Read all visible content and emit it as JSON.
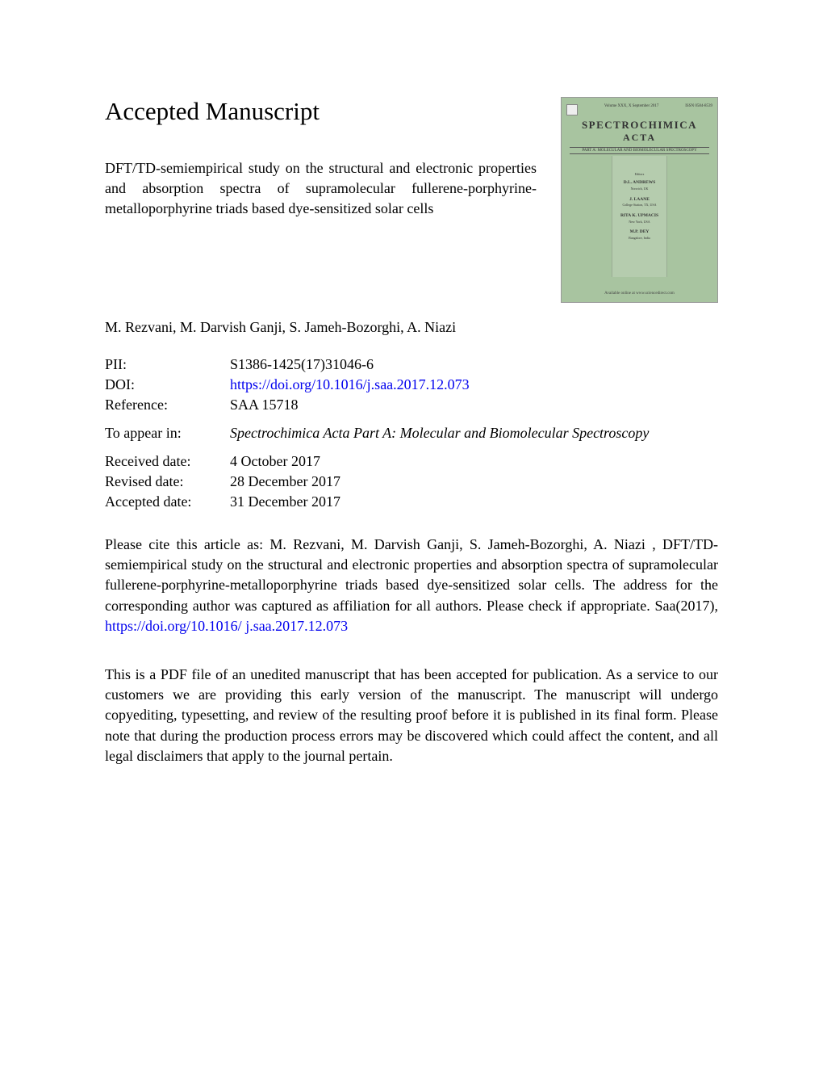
{
  "heading": "Accepted Manuscript",
  "article_title": "DFT/TD-semiempirical study on the structural and electronic properties and absorption spectra of supramolecular fullerene-porphyrine-metalloporphyrine triads based dye-sensitized solar cells",
  "authors": "M. Rezvani, M. Darvish Ganji, S. Jameh-Bozorghi, A. Niazi",
  "cover": {
    "volume_info": "Volume XXX,  X September  2017",
    "issn": "ISSN 0584-8539",
    "journal_title": "SPECTROCHIMICA",
    "journal_subtitle": "ACTA",
    "part": "PART A: MOLECULAR AND BIOMOLECULAR SPECTROSCOPY",
    "editors_label": "Editors",
    "editors": [
      {
        "name": "D.L. ANDREWS",
        "loc": "Norwich, UK"
      },
      {
        "name": "J. LAANE",
        "loc": "College Station, TX, USA"
      },
      {
        "name": "RITA K. UPMACIS",
        "loc": "New York, USA"
      },
      {
        "name": "M.P. DEY",
        "loc": "Bangalore, India"
      }
    ],
    "footer": "Available online at www.sciencedirect.com"
  },
  "meta": {
    "pii_label": "PII:",
    "pii_value": "S1386-1425(17)31046-6",
    "doi_label": "DOI:",
    "doi_value": "https://doi.org/10.1016/j.saa.2017.12.073",
    "reference_label": "Reference:",
    "reference_value": "SAA 15718",
    "appear_label": "To appear in:",
    "appear_value": "Spectrochimica Acta Part A: Molecular and Biomolecular Spectroscopy",
    "received_label": "Received date:",
    "received_value": "4 October 2017",
    "revised_label": "Revised date:",
    "revised_value": "28 December 2017",
    "accepted_label": "Accepted date:",
    "accepted_value": "31 December 2017"
  },
  "citation": {
    "pre": "Please cite this article as: M. Rezvani, M. Darvish Ganji, S. Jameh-Bozorghi, A. Niazi , DFT/TD-semiempirical study on the structural and electronic properties and absorption spectra of supramolecular fullerene-porphyrine-metalloporphyrine triads based dye-sensitized solar cells. The address for the corresponding author was captured as affiliation for all authors. Please check if appropriate. Saa(2017), ",
    "link1": "https://doi.org/10.1016/",
    "link2": "j.saa.2017.12.073"
  },
  "disclaimer": "This is a PDF file of an unedited manuscript that has been accepted for publication. As a service to our customers we are providing this early version of the manuscript. The manuscript will undergo copyediting, typesetting, and review of the resulting proof before it is published in its final form. Please note that during the production process errors may be discovered which could affect the content, and all legal disclaimers that apply to the journal pertain.",
  "colors": {
    "link": "#0000ee",
    "cover_bg": "#a8c4a0",
    "text": "#000000",
    "page_bg": "#ffffff"
  }
}
